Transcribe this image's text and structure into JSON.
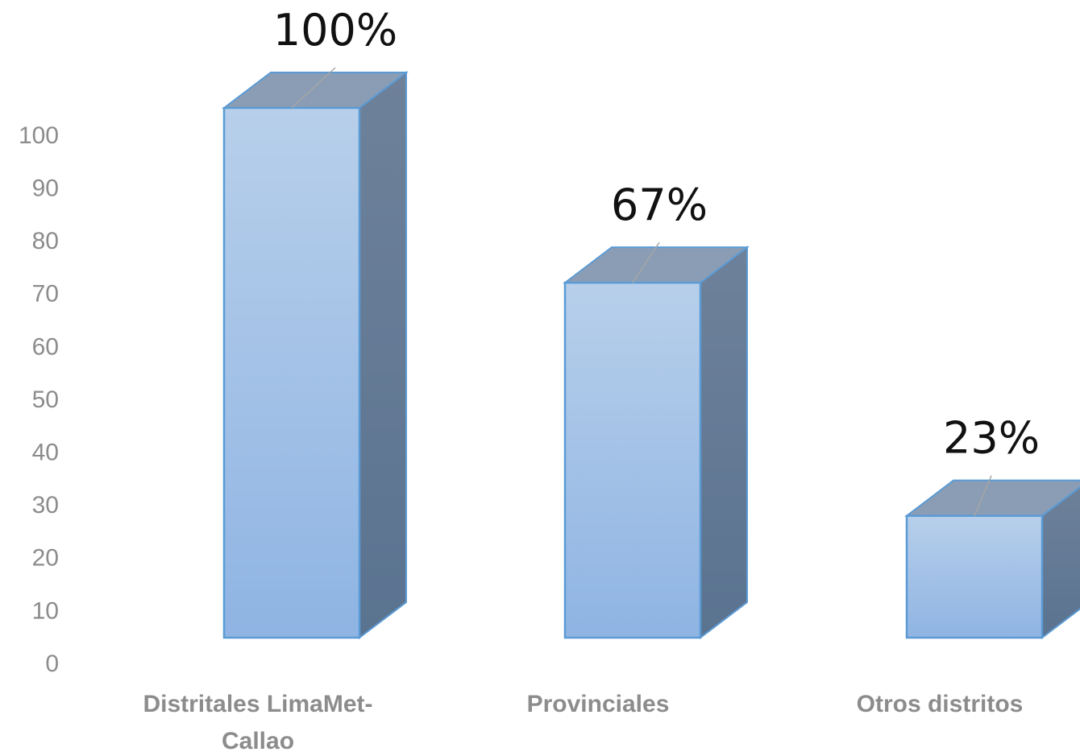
{
  "chart_data": {
    "type": "bar",
    "style": "3d-column",
    "categories": [
      "Distritales LimaMet-Callao",
      "Provinciales",
      "Otros distritos"
    ],
    "category_label_lines": [
      [
        "Distritales LimaMet-",
        "Callao"
      ],
      [
        "Provinciales"
      ],
      [
        "Otros distritos"
      ]
    ],
    "values": [
      100,
      67,
      23
    ],
    "data_labels": [
      "100%",
      "67%",
      "23%"
    ],
    "yticks": [
      "0",
      "10",
      "20",
      "30",
      "40",
      "50",
      "60",
      "70",
      "80",
      "90",
      "100"
    ],
    "ylim": [
      0,
      100
    ],
    "grid": false,
    "legend": "none",
    "colors": {
      "bar_top": "#b7cfea",
      "bar_bottom": "#8fb4e3",
      "bar_edge": "#5b9bd5",
      "side_top": "#6e819a",
      "side_bottom": "#5a7390",
      "roof": "#8a9db5",
      "axis_text": "#8c8c8c",
      "data_label": "#111111"
    }
  }
}
